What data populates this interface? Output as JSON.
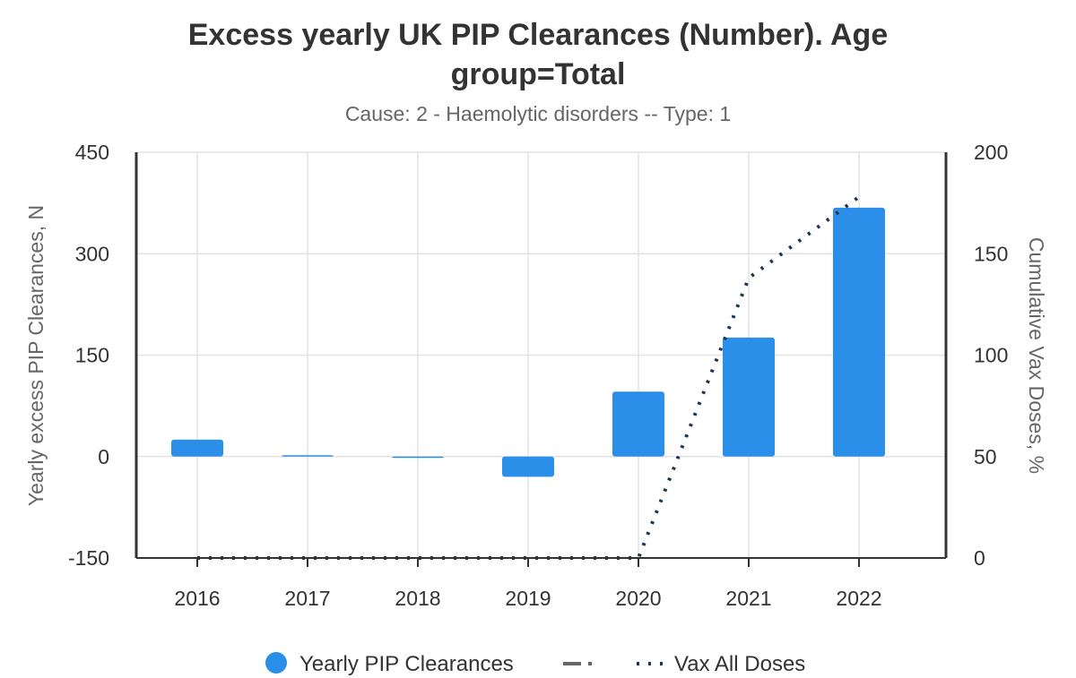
{
  "chart_data": {
    "type": "bar",
    "title_line1": "Excess yearly UK PIP Clearances (Number). Age",
    "title_line2": "group=Total",
    "subtitle": "Cause: 2 - Haemolytic disorders -- Type: 1",
    "categories": [
      "2016",
      "2017",
      "2018",
      "2019",
      "2020",
      "2021",
      "2022"
    ],
    "y_left": {
      "label": "Yearly excess PIP Clearances, N",
      "range": [
        -150,
        450
      ],
      "ticks": [
        "-150",
        "0",
        "150",
        "300",
        "450"
      ],
      "tick_values": [
        -150,
        0,
        150,
        300,
        450
      ]
    },
    "y_right": {
      "label": "Cumulative Vax Doses, %",
      "range": [
        0,
        200
      ],
      "ticks": [
        "0",
        "50",
        "100",
        "150",
        "200"
      ],
      "tick_values": [
        0,
        50,
        100,
        150,
        200
      ]
    },
    "series": [
      {
        "name": "Yearly PIP Clearances",
        "type": "bar",
        "axis": "left",
        "color": "#2b8fea",
        "values": [
          25,
          2,
          0,
          -30,
          96,
          176,
          368
        ]
      },
      {
        "name": "Vax All Doses",
        "type": "line",
        "style": "dotted",
        "axis": "right",
        "color": "#1b3553",
        "values": [
          0,
          0,
          0,
          0,
          0,
          138,
          178
        ]
      }
    ],
    "legend": {
      "position": "bottom",
      "items": [
        {
          "name": "Yearly PIP Clearances",
          "symbol": "circle",
          "color": "#2b8fea"
        },
        {
          "name": "",
          "symbol": "dash-dot",
          "color": "#666666"
        },
        {
          "name": "Vax All Doses",
          "symbol": "dotted",
          "color": "#1b3553"
        }
      ]
    },
    "grid": true
  }
}
